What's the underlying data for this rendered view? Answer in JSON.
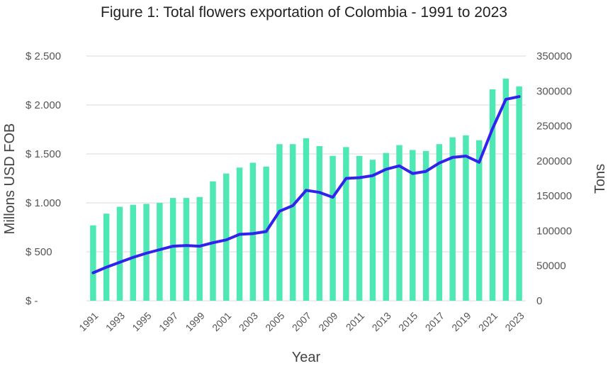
{
  "chart_data": {
    "type": "bar+line",
    "title": "Figure 1: Total flowers exportation of Colombia - 1991 to 2023",
    "xlabel": "Year",
    "ylabel_left": "Millons USD FOB",
    "ylabel_right": "Tons",
    "ylim_left": [
      0,
      2500
    ],
    "ylim_right": [
      0,
      350000
    ],
    "y_left_ticks": [
      "$ -",
      "$ 500",
      "$ 1.000",
      "$ 1.500",
      "$ 2.000",
      "$ 2.500"
    ],
    "y_right_ticks": [
      "0",
      "50000",
      "100000",
      "150000",
      "200000",
      "250000",
      "300000",
      "350000"
    ],
    "x_tick_labels": [
      "1991",
      "1993",
      "1995",
      "1997",
      "1999",
      "2001",
      "2003",
      "2005",
      "2007",
      "2009",
      "2011",
      "2013",
      "2015",
      "2017",
      "2019",
      "2021",
      "2023"
    ],
    "grid": true,
    "categories": [
      1991,
      1992,
      1993,
      1994,
      1995,
      1996,
      1997,
      1998,
      1999,
      2000,
      2001,
      2002,
      2003,
      2004,
      2005,
      2006,
      2007,
      2008,
      2009,
      2010,
      2011,
      2012,
      2013,
      2014,
      2015,
      2016,
      2017,
      2018,
      2019,
      2020,
      2021,
      2022,
      2023
    ],
    "series": [
      {
        "type": "bar",
        "axis": "left",
        "color": "#4ee8b4",
        "values": [
          770,
          890,
          960,
          980,
          990,
          1000,
          1050,
          1050,
          1060,
          1220,
          1300,
          1360,
          1410,
          1370,
          1600,
          1600,
          1660,
          1580,
          1480,
          1570,
          1480,
          1440,
          1510,
          1590,
          1540,
          1530,
          1600,
          1670,
          1690,
          1640,
          2160,
          2270,
          2190
        ]
      },
      {
        "type": "line",
        "axis": "right",
        "color": "#3322ee",
        "values": [
          40000,
          48000,
          55000,
          62000,
          68000,
          73000,
          78000,
          79000,
          78000,
          83000,
          87000,
          95000,
          96000,
          99000,
          128000,
          136000,
          158000,
          155000,
          148000,
          175000,
          176000,
          179000,
          188000,
          193000,
          182000,
          185000,
          197000,
          205000,
          207000,
          198000,
          246000,
          288000,
          292000
        ]
      }
    ]
  }
}
